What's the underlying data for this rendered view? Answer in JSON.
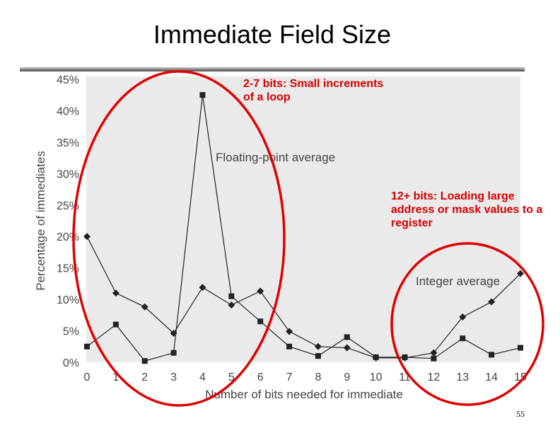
{
  "slide": {
    "title": "Immediate Field Size",
    "page_number": "55",
    "annotation_small": "2-7 bits: Small increments of a loop",
    "annotation_large": "12+ bits: Loading large address or mask values to a register",
    "highlight_color": "#e00000"
  },
  "chart_data": {
    "type": "line",
    "title": "",
    "xlabel": "Number of bits needed for immediate",
    "ylabel": "Percentage of immediates",
    "x": [
      0,
      1,
      2,
      3,
      4,
      5,
      6,
      7,
      8,
      9,
      10,
      11,
      12,
      13,
      14,
      15
    ],
    "xlim": [
      0,
      15
    ],
    "ylim": [
      0,
      45
    ],
    "ytick_labels": [
      "0%",
      "5%",
      "10%",
      "15%",
      "20%",
      "25%",
      "30%",
      "35%",
      "40%",
      "45%"
    ],
    "grid": false,
    "series": [
      {
        "name": "Floating-point average",
        "marker": "square",
        "values": [
          2.5,
          6,
          0.2,
          1.5,
          42.5,
          10.5,
          6.5,
          2.5,
          1,
          4,
          0.8,
          0.8,
          0.6,
          3.8,
          1.2,
          2.3
        ]
      },
      {
        "name": "Integer average",
        "marker": "diamond",
        "values": [
          20,
          11,
          8.8,
          4.6,
          11.9,
          9.1,
          11.3,
          4.9,
          2.5,
          2.3,
          0.7,
          0.7,
          1.5,
          7.2,
          9.6,
          14.1
        ]
      }
    ],
    "colors": {
      "plot_bg": "#eaeaea",
      "line": "#222222",
      "text": "#444444"
    }
  }
}
